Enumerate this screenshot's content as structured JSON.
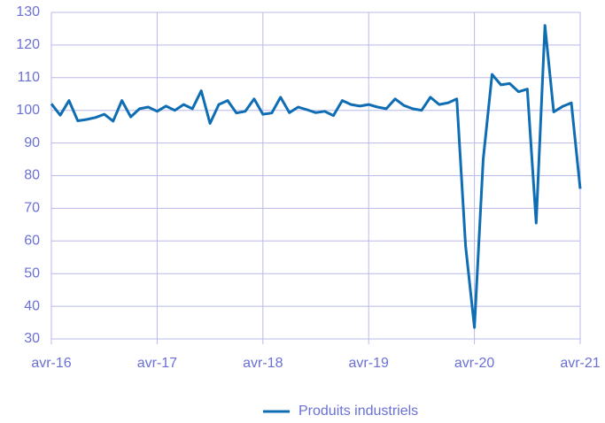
{
  "chart_data": {
    "type": "line",
    "categories": [
      "avr-16",
      null,
      null,
      null,
      null,
      null,
      null,
      null,
      null,
      null,
      null,
      null,
      "avr-17",
      null,
      null,
      null,
      null,
      null,
      null,
      null,
      null,
      null,
      null,
      null,
      "avr-18",
      null,
      null,
      null,
      null,
      null,
      null,
      null,
      null,
      null,
      null,
      null,
      "avr-19",
      null,
      null,
      null,
      null,
      null,
      null,
      null,
      null,
      null,
      null,
      null,
      "avr-20",
      null,
      null,
      null,
      null,
      null,
      null,
      null,
      null,
      null,
      null,
      null,
      "avr-21"
    ],
    "series": [
      {
        "name": "Produits industriels",
        "color": "#0f6db4",
        "values": [
          102,
          98.5,
          103,
          96.8,
          97.2,
          97.8,
          98.8,
          96.7,
          103,
          98,
          100.5,
          101,
          99.7,
          101.3,
          100,
          101.8,
          100.5,
          106,
          96,
          101.8,
          103,
          99.2,
          99.7,
          103.5,
          98.8,
          99.2,
          104,
          99.3,
          101,
          100.2,
          99.3,
          99.7,
          98.4,
          103,
          101.8,
          101.3,
          101.8,
          101,
          100.5,
          103.5,
          101.5,
          100.5,
          100,
          104,
          101.8,
          102.3,
          103.5,
          58.5,
          33.5,
          85,
          111,
          107.8,
          108.2,
          105.7,
          106.5,
          65.5,
          126,
          99.5,
          101.2,
          102.3,
          76
        ]
      }
    ],
    "ylim": [
      30,
      130
    ],
    "yticks": [
      30,
      40,
      50,
      60,
      70,
      80,
      90,
      100,
      110,
      120,
      130
    ],
    "grid": true,
    "legend": "bottom"
  }
}
